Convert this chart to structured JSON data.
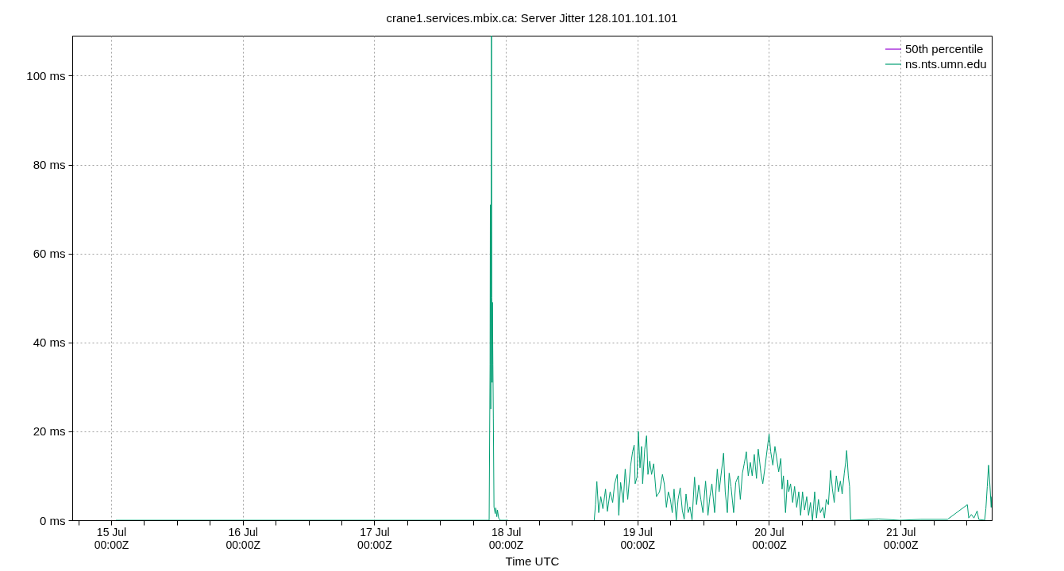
{
  "chart_data": {
    "type": "line",
    "title": "crane1.services.mbix.ca: Server Jitter 128.101.101.101",
    "xlabel": "Time UTC",
    "xlim": [
      "--07-14T16:54",
      "--07-21T16:38"
    ],
    "xticks": [
      {
        "value": "--07-14T18:00",
        "label": null
      },
      {
        "value": "--07-15T00:00",
        "label": "15 Jul\n00:00Z"
      },
      {
        "value": "--07-15T06:00",
        "label": null
      },
      {
        "value": "--07-15T12:00",
        "label": null
      },
      {
        "value": "--07-15T18:00",
        "label": null
      },
      {
        "value": "--07-16T00:00",
        "label": "16 Jul\n00:00Z"
      },
      {
        "value": "--07-16T06:00",
        "label": null
      },
      {
        "value": "--07-16T12:00",
        "label": null
      },
      {
        "value": "--07-16T18:00",
        "label": null
      },
      {
        "value": "--07-17T00:00",
        "label": "17 Jul\n00:00Z"
      },
      {
        "value": "--07-17T06:00",
        "label": null
      },
      {
        "value": "--07-17T12:00",
        "label": null
      },
      {
        "value": "--07-17T18:00",
        "label": null
      },
      {
        "value": "--07-18T00:00",
        "label": "18 Jul\n00:00Z"
      },
      {
        "value": "--07-18T06:00",
        "label": null
      },
      {
        "value": "--07-18T12:00",
        "label": null
      },
      {
        "value": "--07-18T18:00",
        "label": null
      },
      {
        "value": "--07-19T00:00",
        "label": "19 Jul\n00:00Z"
      },
      {
        "value": "--07-19T06:00",
        "label": null
      },
      {
        "value": "--07-19T12:00",
        "label": null
      },
      {
        "value": "--07-19T18:00",
        "label": null
      },
      {
        "value": "--07-20T00:00",
        "label": "20 Jul\n00:00Z"
      },
      {
        "value": "--07-20T06:00",
        "label": null
      },
      {
        "value": "--07-20T12:00",
        "label": null
      },
      {
        "value": "--07-20T18:00",
        "label": null
      },
      {
        "value": "--07-21T00:00",
        "label": "21 Jul\n00:00Z"
      },
      {
        "value": "--07-21T06:00",
        "label": null
      },
      {
        "value": "--07-21T12:00",
        "label": null
      }
    ],
    "ylim": [
      0,
      109
    ],
    "yticks": [
      {
        "value": 0,
        "label": "0 ms"
      },
      {
        "value": 20,
        "label": "20 ms"
      },
      {
        "value": 40,
        "label": "40 ms"
      },
      {
        "value": 60,
        "label": "60 ms"
      },
      {
        "value": 80,
        "label": "80 ms"
      },
      {
        "value": 100,
        "label": "100 ms"
      }
    ],
    "grid": true,
    "legend": "top right",
    "line_style": "solid",
    "series": [
      {
        "name": "50th percentile",
        "color": "#9400d3"
      },
      {
        "name": "ns.nts.umn.edu",
        "color": "#009e73",
        "x": [
          "--07-15T00:52",
          "--07-16T13:40",
          "--07-17T20:57",
          "--07-17T21:07",
          "--07-17T21:10",
          "--07-17T21:15",
          "--07-17T21:23",
          "--07-17T21:26",
          "--07-17T21:30",
          "--07-17T21:33",
          "--07-17T21:38",
          "--07-17T21:43",
          "--07-17T21:50",
          "--07-17T22:03",
          "--07-17T22:10",
          "--07-17T22:21",
          "--07-17T22:28",
          "--07-17T22:41",
          "--07-17T22:58",
          "--07-18T00:25",
          "--07-18T09:07",
          "--07-18T16:07",
          "--07-18T16:21",
          "--07-18T16:36",
          "--07-18T16:56",
          "--07-18T17:19",
          "--07-18T17:42",
          "--07-18T18:11",
          "--07-18T18:31",
          "--07-18T19:01",
          "--07-18T19:29",
          "--07-18T19:50",
          "--07-18T20:19",
          "--07-18T20:36",
          "--07-18T20:56",
          "--07-18T21:25",
          "--07-18T21:46",
          "--07-18T22:14",
          "--07-18T22:44",
          "--07-18T23:07",
          "--07-18T23:24",
          "--07-18T23:35",
          "--07-18T23:56",
          "--07-19T00:10",
          "--07-19T00:28",
          "--07-19T00:45",
          "--07-19T00:57",
          "--07-19T01:20",
          "--07-19T01:40",
          "--07-19T01:55",
          "--07-19T02:15",
          "--07-19T02:35",
          "--07-19T02:58",
          "--07-19T03:28",
          "--07-19T04:02",
          "--07-19T04:34",
          "--07-19T04:54",
          "--07-19T05:17",
          "--07-19T05:38",
          "--07-19T06:01",
          "--07-19T06:21",
          "--07-19T06:41",
          "--07-19T07:05",
          "--07-19T07:25",
          "--07-19T07:48",
          "--07-19T08:11",
          "--07-19T08:32",
          "--07-19T08:52",
          "--07-19T09:15",
          "--07-19T09:35",
          "--07-19T09:58",
          "--07-19T10:25",
          "--07-19T10:47",
          "--07-19T11:11",
          "--07-19T11:34",
          "--07-19T11:57",
          "--07-19T12:26",
          "--07-19T12:52",
          "--07-19T13:13",
          "--07-19T13:35",
          "--07-19T14:05",
          "--07-19T14:34",
          "--07-19T14:54",
          "--07-19T15:14",
          "--07-19T15:43",
          "--07-19T16:01",
          "--07-19T16:24",
          "--07-19T16:44",
          "--07-19T17:04",
          "--07-19T17:33",
          "--07-19T17:56",
          "--07-19T18:25",
          "--07-19T18:46",
          "--07-19T19:09",
          "--07-19T19:29",
          "--07-19T19:52",
          "--07-19T20:13",
          "--07-19T20:36",
          "--07-19T20:56",
          "--07-19T21:19",
          "--07-19T21:43",
          "--07-19T22:02",
          "--07-19T22:32",
          "--07-19T22:52",
          "--07-19T23:15",
          "--07-19T23:44",
          "--07-20T00:01",
          "--07-20T00:19",
          "--07-20T00:42",
          "--07-20T01:05",
          "--07-20T01:46",
          "--07-20T02:09",
          "--07-20T02:23",
          "--07-20T02:38",
          "--07-20T03:01",
          "--07-20T03:22",
          "--07-20T03:36",
          "--07-20T03:56",
          "--07-20T04:19",
          "--07-20T04:40",
          "--07-20T05:03",
          "--07-20T05:26",
          "--07-20T05:46",
          "--07-20T06:07",
          "--07-20T06:29",
          "--07-20T06:53",
          "--07-20T07:13",
          "--07-20T07:34",
          "--07-20T07:56",
          "--07-20T08:20",
          "--07-20T08:40",
          "--07-20T09:01",
          "--07-20T09:23",
          "--07-20T09:47",
          "--07-20T10:07",
          "--07-20T10:27",
          "--07-20T10:50",
          "--07-20T11:14",
          "--07-20T11:34",
          "--07-20T11:54",
          "--07-20T12:17",
          "--07-20T12:40",
          "--07-20T13:01",
          "--07-20T13:21",
          "--07-20T13:44",
          "--07-20T13:59",
          "--07-20T14:10",
          "--07-20T14:28",
          "--07-20T14:42",
          "--07-20T14:54",
          "--07-20T20:01",
          "--07-20T23:52",
          "--07-21T03:44",
          "--07-21T08:34",
          "--07-21T12:11",
          "--07-21T12:26",
          "--07-21T12:55",
          "--07-21T13:23",
          "--07-21T13:58",
          "--07-21T14:16",
          "--07-21T15:20",
          "--07-21T15:34",
          "--07-21T15:49",
          "--07-21T16:03",
          "--07-21T16:17",
          "--07-21T16:32",
          "--07-21T16:36"
        ],
        "values": [
          0,
          0,
          0,
          35,
          71,
          25,
          109,
          50,
          31,
          49,
          35,
          23,
          3,
          1.5,
          2.8,
          0.8,
          2.3,
          0.5,
          0,
          0,
          null,
          0,
          3.5,
          8.7,
          1.7,
          5.3,
          2.6,
          7,
          2,
          6.4,
          4,
          8.2,
          10.3,
          1.1,
          8.5,
          4,
          11.5,
          4.7,
          12.1,
          15.4,
          16.9,
          8.2,
          9.7,
          20,
          11.8,
          16.6,
          8.2,
          16,
          19,
          10.3,
          13.3,
          10.3,
          12.7,
          5.3,
          6.4,
          10.3,
          8.2,
          2.9,
          6.4,
          4.7,
          1.7,
          7,
          0,
          4.7,
          7.3,
          2.3,
          0.2,
          5.9,
          1.7,
          3,
          0,
          9.7,
          3.5,
          7.9,
          4.7,
          1.7,
          8.8,
          1.1,
          5.3,
          8.2,
          1.7,
          11.5,
          6.4,
          10,
          15.1,
          6.4,
          1.7,
          10.6,
          7.6,
          1.7,
          8.5,
          10,
          4.7,
          10.6,
          12.7,
          15.4,
          10,
          13,
          10,
          14.8,
          9.4,
          16,
          10.6,
          8.2,
          11.8,
          16.6,
          19.4,
          15.4,
          12.4,
          16.6,
          10.9,
          13.9,
          7,
          10,
          1.7,
          9.1,
          6.4,
          8.2,
          4,
          7.6,
          2.9,
          6.4,
          1.1,
          6.4,
          2.3,
          5.3,
          1.1,
          4,
          0,
          6.4,
          0.5,
          4.7,
          1.7,
          2.9,
          0.5,
          4.7,
          3.5,
          11.2,
          7,
          4,
          10,
          6.4,
          8.8,
          5.9,
          10.6,
          13,
          15.7,
          10,
          7.6,
          0,
          0.3,
          0,
          0.2,
          0.2,
          3.5,
          0.5,
          1.3,
          0.5,
          2.1,
          0.2,
          0,
          2.6,
          7.6,
          12.4,
          8.2,
          2.9,
          5.3
        ]
      }
    ]
  }
}
